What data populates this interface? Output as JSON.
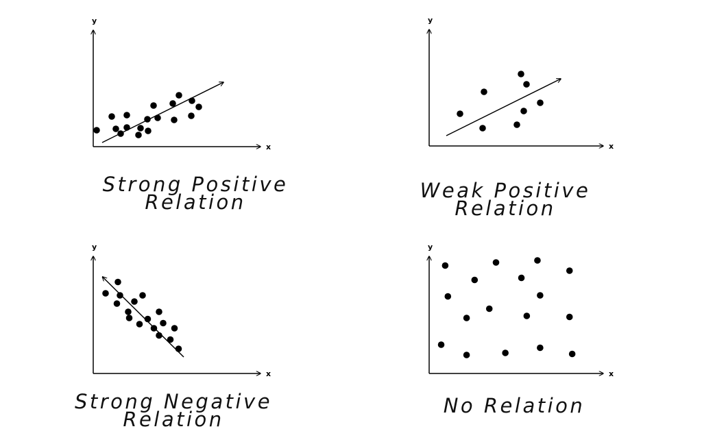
{
  "panels": [
    {
      "caption": [
        "Strong Positive",
        "Relation"
      ],
      "x_label": "x",
      "y_label": "y",
      "trend": "increasing",
      "points": [
        [
          0.5,
          2.4
        ],
        [
          2.7,
          4.4
        ],
        [
          3.3,
          2.6
        ],
        [
          4.0,
          1.9
        ],
        [
          4.9,
          4.6
        ],
        [
          4.9,
          2.8
        ],
        [
          6.6,
          1.7
        ],
        [
          6.9,
          2.7
        ],
        [
          7.9,
          4.0
        ],
        [
          8.0,
          2.3
        ],
        [
          8.8,
          6.0
        ],
        [
          9.4,
          4.2
        ],
        [
          11.8,
          3.9
        ],
        [
          11.6,
          6.3
        ],
        [
          12.5,
          7.5
        ],
        [
          14.3,
          4.5
        ],
        [
          14.4,
          6.7
        ],
        [
          15.4,
          5.8
        ]
      ],
      "trend_line": [
        [
          1.3,
          0.6
        ],
        [
          19.0,
          9.4
        ]
      ]
    },
    {
      "caption": [
        "Weak Positive",
        "Relation"
      ],
      "x_label": "x",
      "y_label": "y",
      "trend": "weak increasing",
      "points": [
        [
          4.5,
          4.7
        ],
        [
          7.8,
          2.6
        ],
        [
          8.0,
          7.9
        ],
        [
          12.8,
          3.1
        ],
        [
          13.4,
          10.5
        ],
        [
          13.8,
          5.1
        ],
        [
          14.2,
          9.0
        ],
        [
          16.2,
          6.3
        ]
      ],
      "trend_line": [
        [
          2.5,
          1.5
        ],
        [
          19.2,
          9.8
        ]
      ]
    },
    {
      "caption": [
        "Strong Negative",
        "Relation"
      ],
      "x_label": "x",
      "y_label": "y",
      "trend": "decreasing",
      "points": [
        [
          1.2,
          7.8
        ],
        [
          2.3,
          6.8
        ],
        [
          2.4,
          8.9
        ],
        [
          2.6,
          7.6
        ],
        [
          3.4,
          6.0
        ],
        [
          3.5,
          5.4
        ],
        [
          4.0,
          7.0
        ],
        [
          4.5,
          4.8
        ],
        [
          4.8,
          7.6
        ],
        [
          5.3,
          5.3
        ],
        [
          5.9,
          4.4
        ],
        [
          6.4,
          6.0
        ],
        [
          6.4,
          3.7
        ],
        [
          6.8,
          4.9
        ],
        [
          7.5,
          3.3
        ],
        [
          7.9,
          4.4
        ],
        [
          8.3,
          2.4
        ]
      ],
      "trend_line": [
        [
          8.8,
          1.6
        ],
        [
          0.9,
          9.4
        ]
      ]
    },
    {
      "caption": [
        "No Relation"
      ],
      "x_label": "x",
      "y_label": "y",
      "trend": "none",
      "points": [
        [
          1.2,
          10.5
        ],
        [
          1.4,
          7.5
        ],
        [
          0.9,
          2.8
        ],
        [
          2.8,
          5.4
        ],
        [
          2.8,
          1.8
        ],
        [
          3.4,
          9.1
        ],
        [
          4.5,
          6.3
        ],
        [
          5.0,
          10.8
        ],
        [
          5.7,
          2.0
        ],
        [
          6.9,
          9.3
        ],
        [
          7.3,
          5.6
        ],
        [
          8.1,
          11.0
        ],
        [
          8.3,
          7.6
        ],
        [
          8.3,
          2.5
        ],
        [
          10.5,
          10.0
        ],
        [
          10.5,
          5.5
        ],
        [
          10.7,
          1.9
        ]
      ],
      "trend_line": null
    }
  ]
}
